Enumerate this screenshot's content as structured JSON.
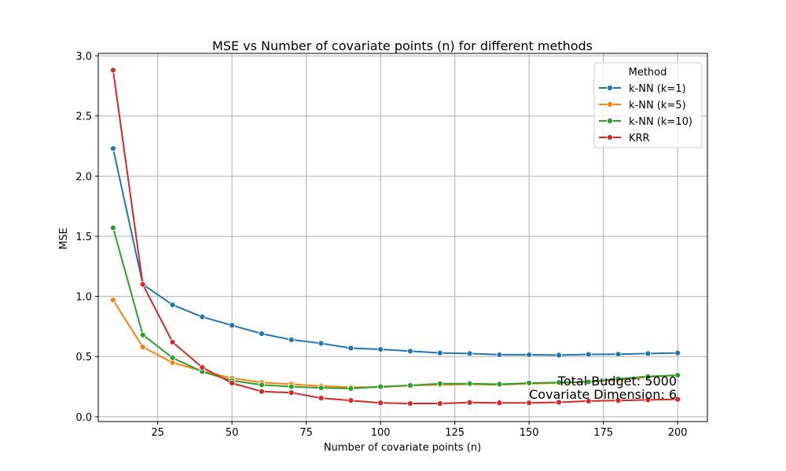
{
  "chart_data": {
    "type": "line",
    "title": "MSE vs Number of covariate points (n) for different methods",
    "xlabel": "Number of covariate points (n)",
    "ylabel": "MSE",
    "xlim": [
      5,
      210
    ],
    "ylim": [
      -0.04,
      3.02
    ],
    "xticks": [
      25,
      50,
      75,
      100,
      125,
      150,
      175,
      200
    ],
    "yticks": [
      0.0,
      0.5,
      1.0,
      1.5,
      2.0,
      2.5,
      3.0
    ],
    "grid": true,
    "legend": {
      "title": "Method",
      "placement": "top-right"
    },
    "x": [
      10,
      20,
      30,
      40,
      50,
      60,
      70,
      80,
      90,
      100,
      110,
      120,
      130,
      140,
      150,
      160,
      170,
      180,
      190,
      200
    ],
    "series": [
      {
        "name": "k-NN (k=1)",
        "color": "#1f77b4",
        "values": [
          2.23,
          1.1,
          0.93,
          0.83,
          0.76,
          0.69,
          0.64,
          0.61,
          0.57,
          0.56,
          0.545,
          0.53,
          0.525,
          0.515,
          0.515,
          0.512,
          0.518,
          0.52,
          0.525,
          0.53
        ]
      },
      {
        "name": "k-NN (k=5)",
        "color": "#ff7f0e",
        "values": [
          0.97,
          0.58,
          0.45,
          0.38,
          0.32,
          0.285,
          0.27,
          0.255,
          0.245,
          0.245,
          0.26,
          0.265,
          0.27,
          0.265,
          0.275,
          0.28,
          0.29,
          0.305,
          0.33,
          0.345
        ]
      },
      {
        "name": "k-NN (k=10)",
        "color": "#2ca02c",
        "values": [
          1.57,
          0.68,
          0.49,
          0.375,
          0.3,
          0.265,
          0.25,
          0.24,
          0.235,
          0.25,
          0.26,
          0.275,
          0.275,
          0.27,
          0.28,
          0.285,
          0.29,
          0.315,
          0.335,
          0.345
        ]
      },
      {
        "name": "KRR",
        "color": "#d62728",
        "values": [
          2.88,
          1.1,
          0.62,
          0.41,
          0.28,
          0.21,
          0.2,
          0.155,
          0.135,
          0.115,
          0.11,
          0.11,
          0.118,
          0.115,
          0.115,
          0.12,
          0.13,
          0.135,
          0.14,
          0.145
        ]
      }
    ],
    "annotations": [
      "Total Budget: 5000",
      "Covariate Dimension: 6"
    ]
  }
}
